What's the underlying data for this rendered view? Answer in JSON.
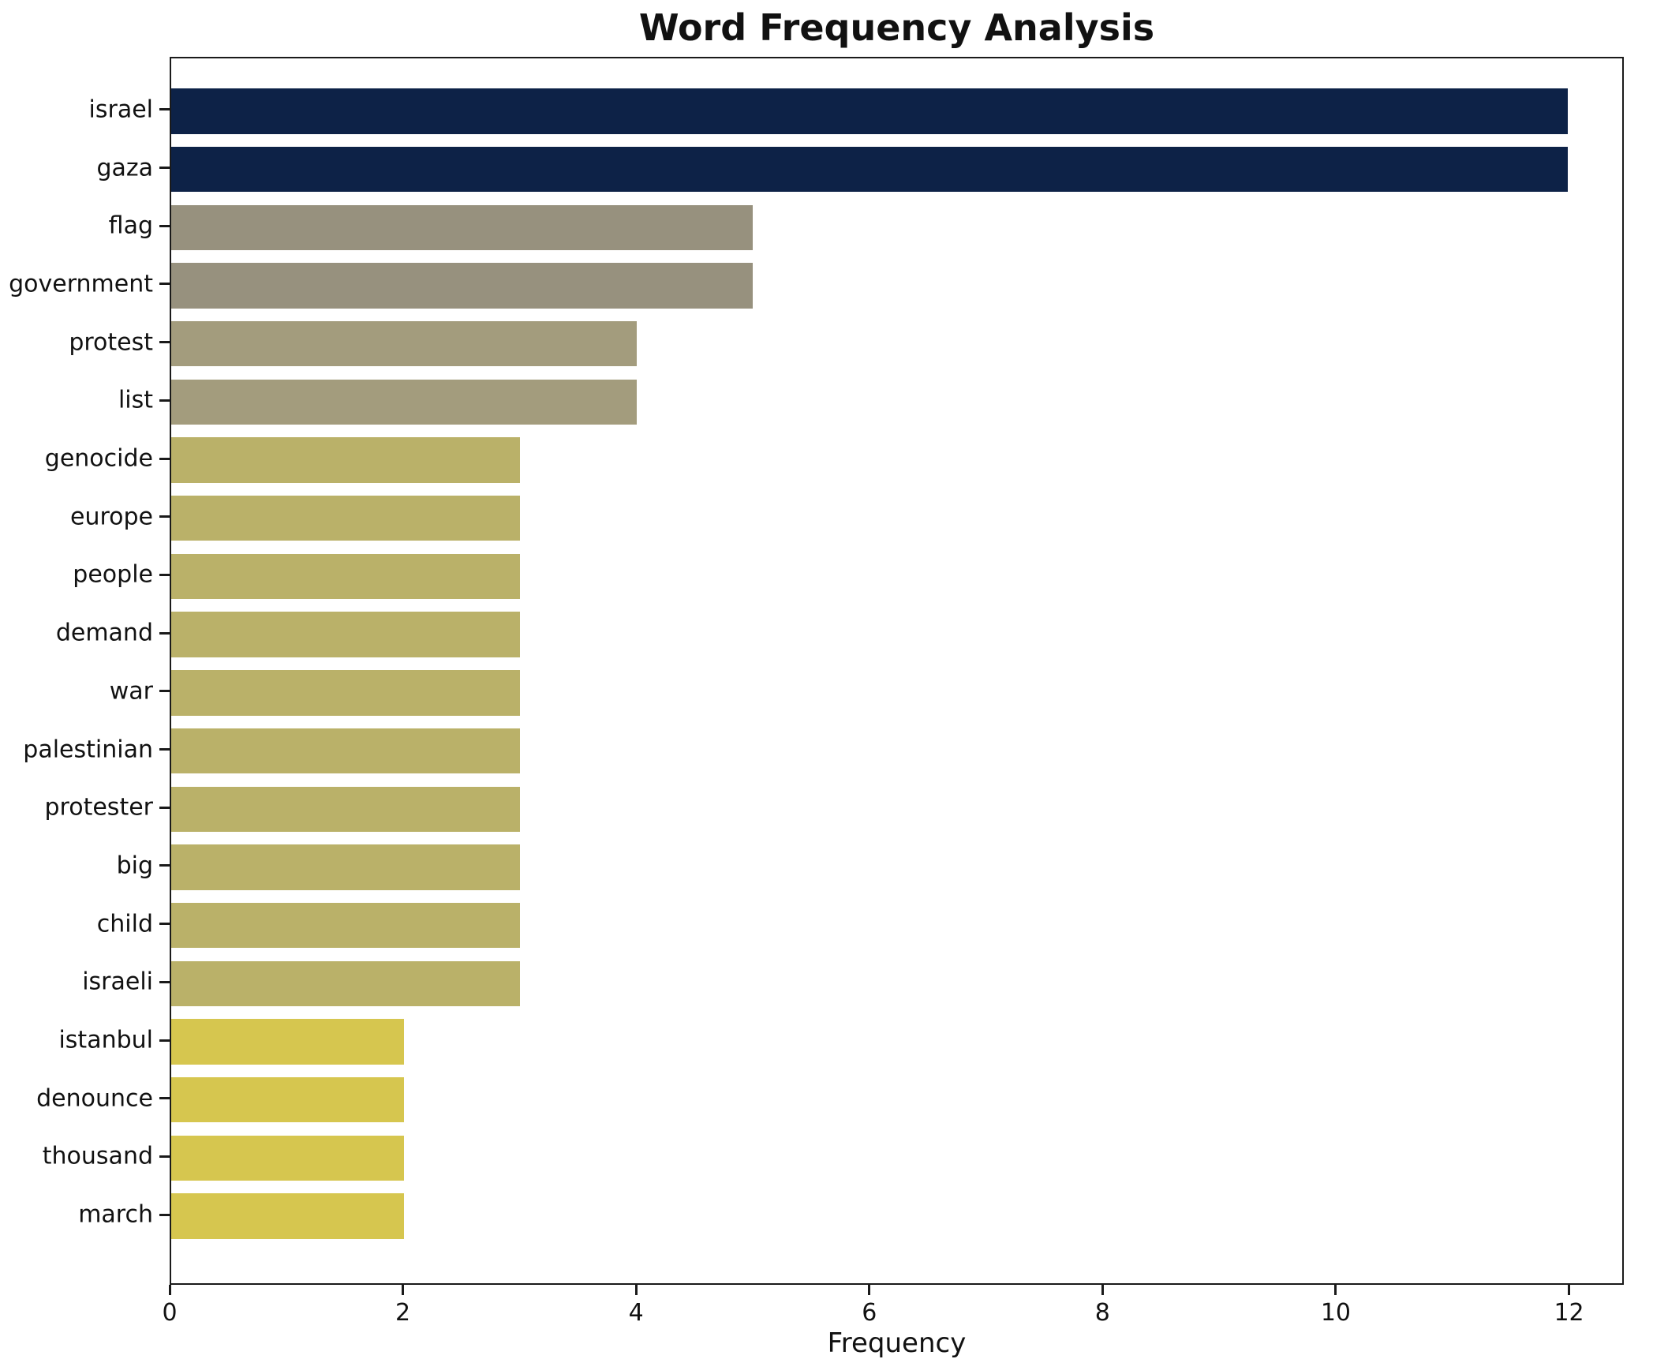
{
  "chart_data": {
    "type": "bar",
    "orientation": "horizontal",
    "title": "Word Frequency Analysis",
    "xlabel": "Frequency",
    "ylabel": "",
    "xlim": [
      0,
      12.47
    ],
    "xticks": [
      0,
      2,
      4,
      6,
      8,
      10,
      12
    ],
    "grid": false,
    "legend": "none",
    "categories": [
      "israel",
      "gaza",
      "flag",
      "government",
      "protest",
      "list",
      "genocide",
      "europe",
      "people",
      "demand",
      "war",
      "palestinian",
      "protester",
      "big",
      "child",
      "israeli",
      "istanbul",
      "denounce",
      "thousand",
      "march"
    ],
    "values": [
      12,
      12,
      5,
      5,
      4,
      4,
      3,
      3,
      3,
      3,
      3,
      3,
      3,
      3,
      3,
      3,
      2,
      2,
      2,
      2
    ],
    "colors": [
      "#0d2247",
      "#0d2247",
      "#97917e",
      "#97917e",
      "#a39c7d",
      "#a39c7d",
      "#bab169",
      "#bab169",
      "#bab169",
      "#bab169",
      "#bab169",
      "#bab169",
      "#bab169",
      "#bab169",
      "#bab169",
      "#bab169",
      "#d6c64f",
      "#d6c64f",
      "#d6c64f",
      "#d6c64f"
    ]
  }
}
